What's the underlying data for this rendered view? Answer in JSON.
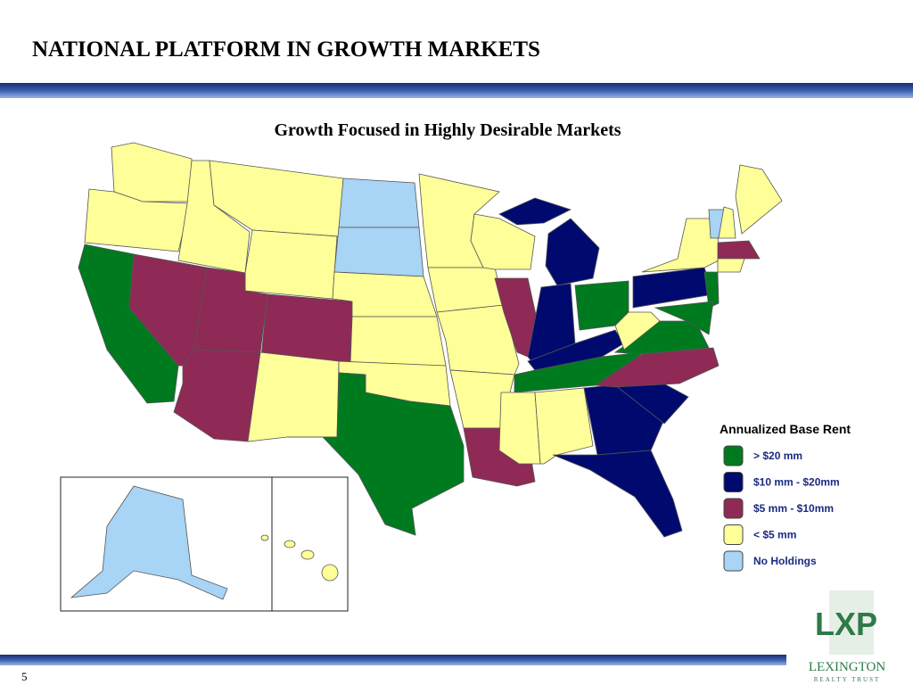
{
  "header": {
    "title": "NATIONAL PLATFORM IN GROWTH MARKETS"
  },
  "map": {
    "title": "Growth Focused in Highly Desirable Markets"
  },
  "legend": {
    "title": "Annualized Base Rent",
    "items": [
      {
        "label": "> $20 mm",
        "color": "#007a1f"
      },
      {
        "label": "$10 mm - $20mm",
        "color": "#000a6e"
      },
      {
        "label": "$5 mm - $10mm",
        "color": "#8e2a55"
      },
      {
        "label": "< $5 mm",
        "color": "#ffff99"
      },
      {
        "label": "No Holdings",
        "color": "#a8d4f5"
      }
    ]
  },
  "logo": {
    "mark": "LXP",
    "name": "LEXINGTON",
    "tagline": "REALTY TRUST"
  },
  "footer": {
    "page": "5"
  }
}
